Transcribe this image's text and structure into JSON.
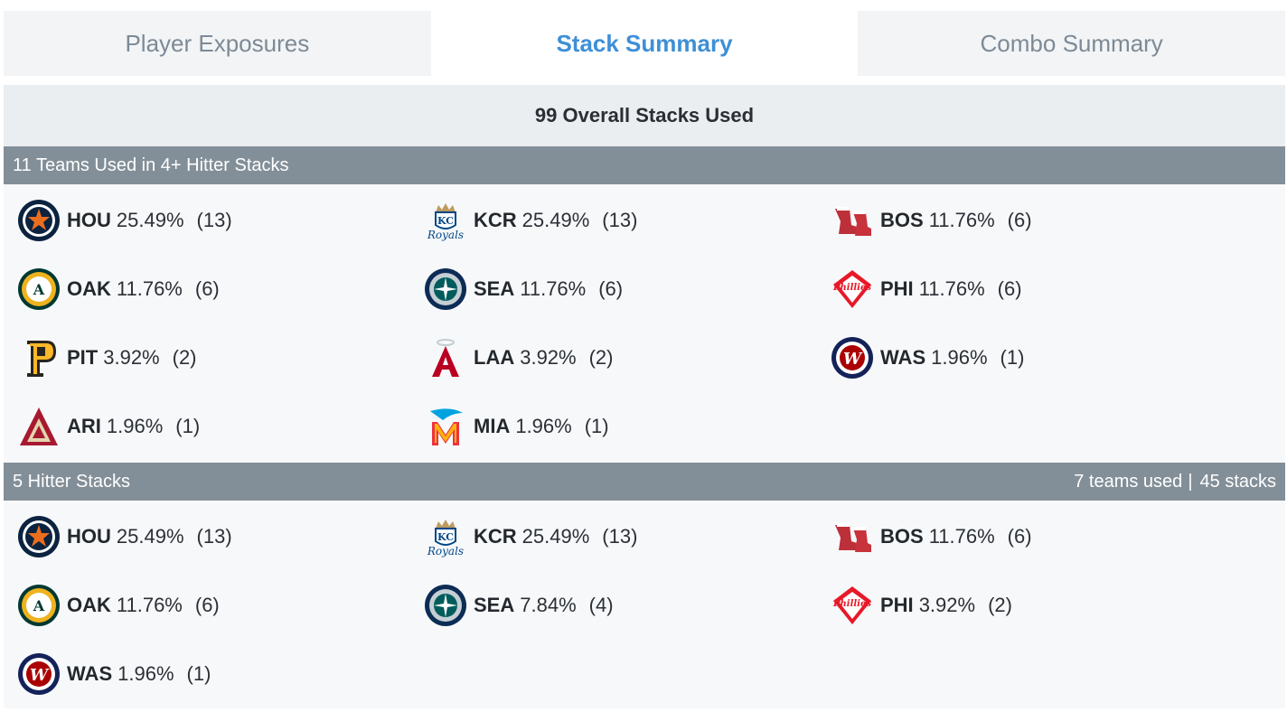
{
  "tabs": [
    {
      "label": "Player Exposures",
      "active": false
    },
    {
      "label": "Stack Summary",
      "active": true
    },
    {
      "label": "Combo Summary",
      "active": false
    }
  ],
  "overall": "99 Overall Stacks Used",
  "sections": [
    {
      "title": "11 Teams Used in 4+ Hitter Stacks",
      "teams_used": "",
      "stacks": "",
      "teams": [
        {
          "abbr": "HOU",
          "pct": "25.49%",
          "count": "(13)",
          "icon": "astros-logo-icon"
        },
        {
          "abbr": "KCR",
          "pct": "25.49%",
          "count": "(13)",
          "icon": "royals-logo-icon"
        },
        {
          "abbr": "BOS",
          "pct": "11.76%",
          "count": "(6)",
          "icon": "red-sox-logo-icon"
        },
        {
          "abbr": "OAK",
          "pct": "11.76%",
          "count": "(6)",
          "icon": "athletics-logo-icon"
        },
        {
          "abbr": "SEA",
          "pct": "11.76%",
          "count": "(6)",
          "icon": "mariners-logo-icon"
        },
        {
          "abbr": "PHI",
          "pct": "11.76%",
          "count": "(6)",
          "icon": "phillies-logo-icon"
        },
        {
          "abbr": "PIT",
          "pct": "3.92%",
          "count": "(2)",
          "icon": "pirates-logo-icon"
        },
        {
          "abbr": "LAA",
          "pct": "3.92%",
          "count": "(2)",
          "icon": "angels-logo-icon"
        },
        {
          "abbr": "WAS",
          "pct": "1.96%",
          "count": "(1)",
          "icon": "nationals-logo-icon"
        },
        {
          "abbr": "ARI",
          "pct": "1.96%",
          "count": "(1)",
          "icon": "diamondbacks-logo-icon"
        },
        {
          "abbr": "MIA",
          "pct": "1.96%",
          "count": "(1)",
          "icon": "marlins-logo-icon"
        }
      ]
    },
    {
      "title": "5 Hitter Stacks",
      "teams_used": "7 teams used",
      "stacks": "45 stacks",
      "teams": [
        {
          "abbr": "HOU",
          "pct": "25.49%",
          "count": "(13)",
          "icon": "astros-logo-icon"
        },
        {
          "abbr": "KCR",
          "pct": "25.49%",
          "count": "(13)",
          "icon": "royals-logo-icon"
        },
        {
          "abbr": "BOS",
          "pct": "11.76%",
          "count": "(6)",
          "icon": "red-sox-logo-icon"
        },
        {
          "abbr": "OAK",
          "pct": "11.76%",
          "count": "(6)",
          "icon": "athletics-logo-icon"
        },
        {
          "abbr": "SEA",
          "pct": "7.84%",
          "count": "(4)",
          "icon": "mariners-logo-icon"
        },
        {
          "abbr": "PHI",
          "pct": "3.92%",
          "count": "(2)",
          "icon": "phillies-logo-icon"
        },
        {
          "abbr": "WAS",
          "pct": "1.96%",
          "count": "(1)",
          "icon": "nationals-logo-icon"
        }
      ]
    }
  ],
  "colors": {
    "active_tab": "#3e8fd6",
    "inactive_tab": "#7d8a96",
    "section_header_bg": "#838f98"
  }
}
